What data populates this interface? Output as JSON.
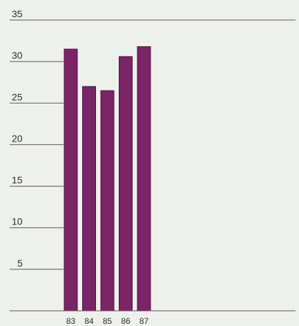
{
  "chart_data": {
    "type": "bar",
    "categories": [
      "83",
      "84",
      "85",
      "86",
      "87"
    ],
    "values": [
      31.5,
      27,
      26.5,
      30.6,
      31.8
    ],
    "y_ticks": [
      "5",
      "10",
      "15",
      "20",
      "25",
      "30",
      "35"
    ],
    "ylim": [
      0,
      35
    ],
    "grid": false,
    "bar_color": "#7b2466",
    "bar_edge_color": "#4e1240",
    "axis_color": "#555555"
  }
}
